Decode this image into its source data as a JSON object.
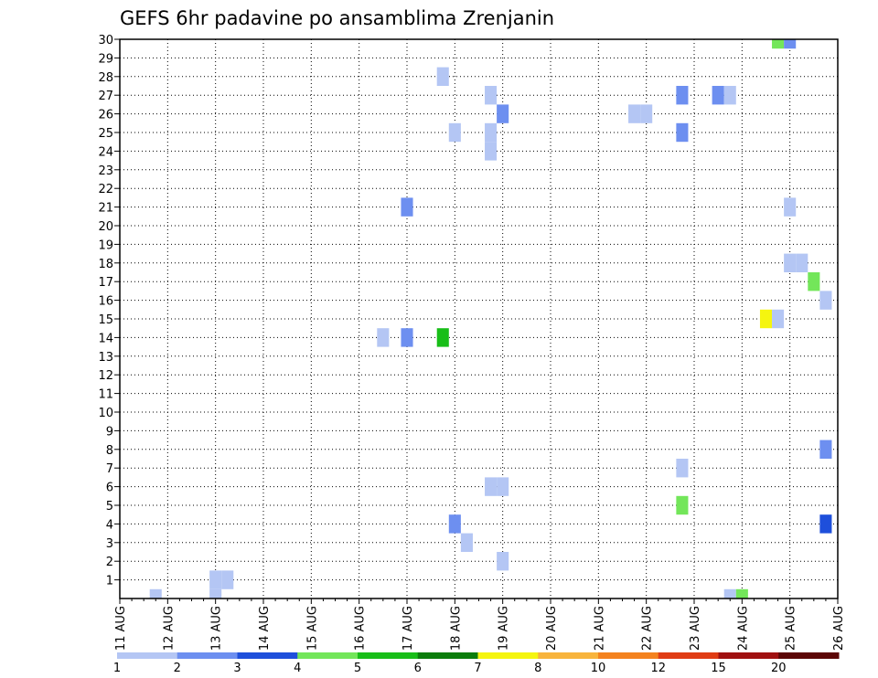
{
  "chart_data": {
    "type": "heatmap",
    "title": "GEFS 6hr padavine po ansamblima Zrenjanin",
    "xlabel": "",
    "ylabel": "",
    "x_ticks": [
      "11 AUG",
      "12 AUG",
      "13 AUG",
      "14 AUG",
      "15 AUG",
      "16 AUG",
      "17 AUG",
      "18 AUG",
      "19 AUG",
      "20 AUG",
      "21 AUG",
      "22 AUG",
      "23 AUG",
      "24 AUG",
      "25 AUG",
      "26 AUG"
    ],
    "xlim": [
      "11 AUG 00Z",
      "26 AUG 00Z"
    ],
    "y_ticks": [
      1,
      2,
      3,
      4,
      5,
      6,
      7,
      8,
      9,
      10,
      11,
      12,
      13,
      14,
      15,
      16,
      17,
      18,
      19,
      20,
      21,
      22,
      23,
      24,
      25,
      26,
      27,
      28,
      29,
      30
    ],
    "ylim": [
      0,
      30
    ],
    "grid": true,
    "legend_position": "bottom",
    "colorbar": {
      "boundary_labels": [
        "1",
        "2",
        "3",
        "4",
        "5",
        "6",
        "7",
        "8",
        "10",
        "12",
        "15",
        "20"
      ],
      "colors": [
        "#b4c6f4",
        "#6d8ff0",
        "#1e4fdb",
        "#73e65a",
        "#18be18",
        "#0b7d0b",
        "#f5f50f",
        "#f8b43c",
        "#f4821e",
        "#e03c14",
        "#a01010",
        "#5c0606"
      ]
    },
    "cells": [
      {
        "date": "11 AUG",
        "hour": 18,
        "member": 0,
        "value": 1.5
      },
      {
        "date": "13 AUG",
        "hour": 0,
        "member": 0,
        "value": 1.5
      },
      {
        "date": "13 AUG",
        "hour": 0,
        "member": 1,
        "value": 1.5
      },
      {
        "date": "13 AUG",
        "hour": 6,
        "member": 1,
        "value": 1.5
      },
      {
        "date": "16 AUG",
        "hour": 12,
        "member": 14,
        "value": 1.5
      },
      {
        "date": "17 AUG",
        "hour": 0,
        "member": 14,
        "value": 2.5
      },
      {
        "date": "17 AUG",
        "hour": 0,
        "member": 21,
        "value": 2.5
      },
      {
        "date": "17 AUG",
        "hour": 18,
        "member": 14,
        "value": 5.5
      },
      {
        "date": "17 AUG",
        "hour": 18,
        "member": 28,
        "value": 1.5
      },
      {
        "date": "18 AUG",
        "hour": 0,
        "member": 4,
        "value": 2.5
      },
      {
        "date": "18 AUG",
        "hour": 0,
        "member": 25,
        "value": 1.5
      },
      {
        "date": "18 AUG",
        "hour": 6,
        "member": 3,
        "value": 1.5
      },
      {
        "date": "18 AUG",
        "hour": 18,
        "member": 6,
        "value": 1.5
      },
      {
        "date": "18 AUG",
        "hour": 18,
        "member": 24,
        "value": 1.5
      },
      {
        "date": "18 AUG",
        "hour": 18,
        "member": 25,
        "value": 1.5
      },
      {
        "date": "18 AUG",
        "hour": 18,
        "member": 27,
        "value": 1.5
      },
      {
        "date": "19 AUG",
        "hour": 0,
        "member": 2,
        "value": 1.5
      },
      {
        "date": "19 AUG",
        "hour": 0,
        "member": 6,
        "value": 1.5
      },
      {
        "date": "19 AUG",
        "hour": 0,
        "member": 26,
        "value": 2.5
      },
      {
        "date": "21 AUG",
        "hour": 18,
        "member": 26,
        "value": 1.5
      },
      {
        "date": "22 AUG",
        "hour": 0,
        "member": 26,
        "value": 1.5
      },
      {
        "date": "22 AUG",
        "hour": 18,
        "member": 5,
        "value": 4.5
      },
      {
        "date": "22 AUG",
        "hour": 18,
        "member": 7,
        "value": 1.5
      },
      {
        "date": "22 AUG",
        "hour": 18,
        "member": 25,
        "value": 2.5
      },
      {
        "date": "22 AUG",
        "hour": 18,
        "member": 27,
        "value": 2.5
      },
      {
        "date": "23 AUG",
        "hour": 12,
        "member": 27,
        "value": 2.5
      },
      {
        "date": "23 AUG",
        "hour": 18,
        "member": 27,
        "value": 1.5
      },
      {
        "date": "23 AUG",
        "hour": 18,
        "member": 0,
        "value": 1.5
      },
      {
        "date": "24 AUG",
        "hour": 0,
        "member": 0,
        "value": 4.5
      },
      {
        "date": "24 AUG",
        "hour": 12,
        "member": 15,
        "value": 7.5
      },
      {
        "date": "24 AUG",
        "hour": 18,
        "member": 15,
        "value": 1.5
      },
      {
        "date": "24 AUG",
        "hour": 18,
        "member": 30,
        "value": 4.5
      },
      {
        "date": "25 AUG",
        "hour": 0,
        "member": 30,
        "value": 2.5
      },
      {
        "date": "25 AUG",
        "hour": 0,
        "member": 18,
        "value": 1.5
      },
      {
        "date": "25 AUG",
        "hour": 0,
        "member": 21,
        "value": 1.5
      },
      {
        "date": "25 AUG",
        "hour": 6,
        "member": 18,
        "value": 1.5
      },
      {
        "date": "25 AUG",
        "hour": 12,
        "member": 17,
        "value": 4.5
      },
      {
        "date": "25 AUG",
        "hour": 18,
        "member": 16,
        "value": 1.5
      },
      {
        "date": "25 AUG",
        "hour": 18,
        "member": 8,
        "value": 2.5
      },
      {
        "date": "25 AUG",
        "hour": 18,
        "member": 4,
        "value": 3.5
      }
    ]
  }
}
